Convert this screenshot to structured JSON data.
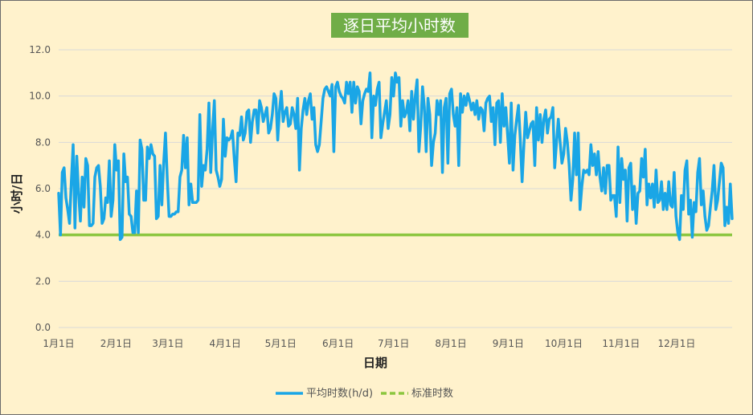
{
  "chart_data": {
    "type": "line",
    "title": "逐日平均小时数",
    "xlabel": "日期",
    "ylabel": "小时/日",
    "ylim": [
      0,
      12
    ],
    "y_ticks": [
      "0.0",
      "2.0",
      "4.0",
      "6.0",
      "8.0",
      "10.0",
      "12.0"
    ],
    "x_ticks": [
      "1月1日",
      "2月1日",
      "3月1日",
      "4月1日",
      "5月1日",
      "6月1日",
      "7月1日",
      "8月1日",
      "9月1日",
      "10月1日",
      "11月1日",
      "12月1日"
    ],
    "x_tick_days": [
      0,
      31,
      59,
      90,
      120,
      151,
      181,
      212,
      243,
      273,
      304,
      334
    ],
    "days_in_year": 365,
    "grid": true,
    "legend_position": "bottom",
    "series": [
      {
        "name": "平均时数(h/d)",
        "color": "#1aa6e6",
        "style": "solid",
        "values": [
          5.8,
          4.0,
          6.7,
          6.9,
          5.6,
          5.1,
          4.5,
          6.3,
          7.9,
          4.3,
          7.4,
          5.8,
          4.6,
          6.5,
          5.2,
          7.3,
          7.0,
          4.4,
          4.4,
          4.5,
          6.5,
          6.9,
          7.0,
          6.1,
          4.5,
          4.7,
          5.6,
          5.4,
          7.2,
          4.8,
          5.5,
          7.9,
          6.8,
          7.2,
          3.8,
          3.9,
          7.5,
          6.3,
          6.5,
          4.9,
          4.8,
          4.1,
          4.1,
          5.9,
          4.1,
          8.1,
          7.7,
          5.5,
          5.5,
          7.8,
          7.3,
          7.9,
          7.5,
          7.4,
          4.7,
          4.8,
          7.0,
          5.3,
          7.1,
          8.4,
          6.4,
          4.8,
          4.8,
          4.9,
          4.9,
          5.0,
          5.0,
          6.5,
          6.8,
          8.3,
          6.9,
          8.2,
          5.3,
          6.2,
          5.4,
          5.4,
          5.4,
          5.5,
          9.2,
          6.1,
          7.0,
          6.8,
          7.7,
          9.7,
          6.7,
          8.5,
          9.8,
          6.8,
          6.5,
          6.1,
          6.4,
          9.0,
          7.4,
          8.2,
          8.1,
          8.2,
          8.5,
          7.3,
          6.3,
          8.4,
          8.3,
          9.1,
          8.1,
          8.4,
          9.3,
          9.4,
          8.0,
          8.9,
          9.4,
          9.4,
          8.4,
          9.8,
          9.5,
          8.9,
          9.2,
          9.5,
          8.4,
          8.6,
          9.2,
          10.1,
          9.9,
          8.1,
          9.4,
          10.2,
          8.9,
          9.3,
          9.5,
          8.7,
          8.8,
          9.5,
          9.2,
          8.6,
          9.9,
          6.8,
          8.6,
          9.4,
          9.9,
          9.2,
          9.8,
          10.1,
          9.0,
          9.5,
          7.9,
          7.6,
          7.9,
          8.9,
          9.9,
          10.3,
          10.4,
          10.2,
          10.0,
          10.5,
          7.6,
          10.4,
          10.6,
          10.2,
          10.0,
          9.9,
          9.7,
          10.6,
          10.1,
          10.6,
          9.3,
          10.6,
          9.7,
          10.4,
          10.2,
          8.8,
          9.8,
          10.1,
          10.3,
          10.2,
          11.0,
          8.2,
          10.0,
          9.6,
          10.3,
          10.6,
          8.2,
          8.8,
          9.3,
          9.8,
          8.6,
          9.2,
          10.8,
          10.0,
          11.0,
          10.6,
          10.8,
          8.7,
          9.8,
          9.1,
          9.3,
          9.8,
          8.5,
          10.2,
          9.0,
          10.0,
          10.7,
          7.6,
          8.7,
          10.4,
          9.5,
          7.6,
          9.9,
          9.2,
          7.0,
          8.0,
          8.4,
          9.8,
          9.2,
          9.8,
          6.7,
          9.5,
          9.9,
          7.1,
          10.1,
          10.3,
          9.2,
          8.7,
          9.5,
          7.0,
          10.1,
          9.3,
          10.0,
          9.6,
          10.1,
          9.8,
          9.4,
          9.7,
          9.2,
          9.8,
          9.0,
          9.5,
          9.4,
          8.5,
          9.7,
          9.9,
          10.0,
          8.9,
          9.5,
          7.9,
          9.7,
          9.8,
          8.0,
          10.1,
          8.7,
          9.5,
          8.3,
          7.1,
          9.7,
          6.8,
          8.3,
          9.0,
          9.6,
          8.1,
          6.3,
          7.9,
          9.3,
          8.2,
          8.5,
          8.8,
          8.9,
          7.0,
          9.5,
          8.1,
          9.2,
          8.0,
          9.0,
          9.4,
          8.4,
          9.0,
          9.1,
          9.5,
          6.9,
          8.0,
          9.0,
          8.0,
          7.1,
          7.5,
          8.6,
          8.0,
          7.0,
          5.5,
          6.4,
          8.4,
          6.6,
          8.4,
          5.1,
          6.1,
          6.8,
          6.7,
          6.8,
          6.6,
          7.9,
          7.0,
          7.5,
          6.6,
          7.6,
          6.5,
          5.9,
          6.9,
          5.8,
          7.0,
          7.0,
          5.5,
          5.7,
          5.7,
          4.8,
          7.8,
          5.4,
          7.3,
          6.4,
          6.8,
          4.6,
          6.9,
          7.1,
          5.1,
          6.1,
          4.5,
          5.8,
          5.9,
          7.3,
          6.5,
          7.7,
          5.3,
          6.2,
          5.6,
          6.2,
          5.2,
          6.8,
          5.4,
          5.5,
          6.3,
          5.1,
          5.8,
          5.1,
          6.3,
          5.3,
          5.2,
          6.7,
          4.8,
          4.1,
          3.8,
          5.7,
          5.1,
          6.8,
          7.2,
          4.9,
          5.5,
          3.9,
          5.4,
          5.0,
          6.7,
          7.3,
          5.3,
          5.9,
          4.8,
          4.2,
          4.4,
          5.2,
          5.9,
          7.0,
          5.1,
          5.5,
          6.3,
          7.1,
          6.9,
          4.4,
          5.2,
          4.5,
          6.2,
          4.7
        ]
      },
      {
        "name": "标准时数",
        "color": "#8cc63f",
        "style": "dashed",
        "values": [
          4.0,
          4.0
        ]
      }
    ]
  }
}
